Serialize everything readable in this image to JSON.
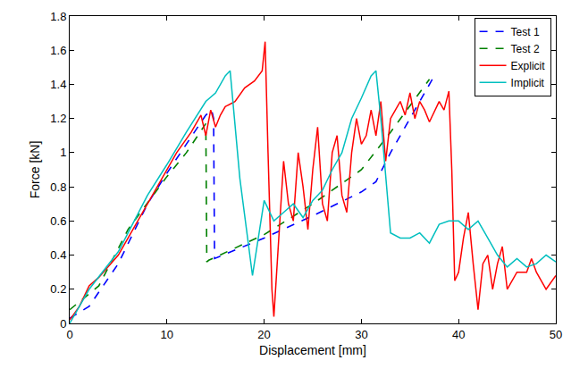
{
  "chart_data": {
    "type": "line",
    "x_label": "Displacement [mm]",
    "y_label": "Force [kN]",
    "xlim": [
      0,
      50
    ],
    "xticks": [
      0,
      10,
      20,
      30,
      40,
      50
    ],
    "ylim": [
      0,
      1.8
    ],
    "yticks": [
      0,
      0.2,
      0.4,
      0.6,
      0.8,
      1,
      1.2,
      1.4,
      1.6,
      1.8
    ],
    "grid": false,
    "legend": "top right",
    "series": [
      {
        "name": "Test 1",
        "color": "#0000ff",
        "line_style": "dash",
        "x": [
          0,
          2,
          5,
          8,
          10,
          12,
          14,
          14.6,
          14.8,
          14.9,
          20,
          25,
          30,
          31.5,
          33,
          36,
          37.5
        ],
        "values": [
          0.03,
          0.1,
          0.35,
          0.7,
          0.88,
          1.05,
          1.22,
          1.25,
          1.2,
          0.38,
          0.5,
          0.63,
          0.77,
          0.83,
          1.0,
          1.3,
          1.45
        ]
      },
      {
        "name": "Test 2",
        "color": "#008000",
        "line_style": "dash",
        "x": [
          0,
          3,
          6,
          10,
          12,
          14,
          14.1,
          14.3,
          20,
          25,
          30,
          33,
          37
        ],
        "values": [
          0.08,
          0.22,
          0.55,
          0.86,
          1.0,
          1.17,
          0.36,
          0.37,
          0.52,
          0.7,
          0.9,
          1.12,
          1.43
        ]
      },
      {
        "name": "Explicit",
        "color": "#ff0000",
        "line_style": "solid",
        "x": [
          0,
          1,
          2,
          3,
          5,
          7,
          9,
          11,
          12.5,
          13.5,
          14,
          14.5,
          15,
          15.5,
          16,
          17,
          18,
          19,
          19.8,
          20.1,
          20.4,
          20.8,
          21,
          21.5,
          22,
          22.5,
          23,
          23.5,
          24,
          24.5,
          25,
          25.5,
          26,
          26.5,
          27,
          27.5,
          28,
          28.5,
          29,
          29.5,
          30,
          30.5,
          31,
          31.5,
          32,
          32.5,
          33,
          33.5,
          34,
          34.5,
          35,
          35.5,
          36,
          36.5,
          37,
          38,
          38.5,
          39,
          39.3,
          39.6,
          40,
          40.5,
          41,
          41.5,
          42,
          42.5,
          43,
          43.5,
          44,
          44.5,
          45,
          46,
          47,
          47.5,
          48,
          49,
          50
        ],
        "values": [
          0.02,
          0.1,
          0.22,
          0.27,
          0.4,
          0.6,
          0.8,
          1.0,
          1.12,
          1.22,
          1.1,
          1.25,
          1.15,
          1.22,
          1.27,
          1.3,
          1.38,
          1.42,
          1.48,
          1.65,
          1.0,
          0.2,
          0.04,
          0.5,
          0.95,
          0.7,
          0.6,
          1.0,
          0.8,
          0.55,
          0.9,
          1.15,
          0.7,
          0.6,
          1.0,
          1.1,
          0.75,
          0.65,
          1.0,
          1.2,
          1.05,
          1.1,
          1.25,
          1.1,
          1.3,
          0.95,
          1.2,
          1.25,
          1.3,
          1.22,
          1.35,
          1.2,
          1.3,
          1.25,
          1.18,
          1.3,
          1.25,
          1.36,
          0.9,
          0.25,
          0.3,
          0.5,
          0.65,
          0.35,
          0.08,
          0.35,
          0.4,
          0.2,
          0.35,
          0.45,
          0.2,
          0.3,
          0.3,
          0.38,
          0.3,
          0.2,
          0.28
        ]
      },
      {
        "name": "Implicit",
        "color": "#00bfbf",
        "line_style": "solid",
        "x": [
          0,
          2,
          5,
          8,
          10,
          12,
          14,
          15,
          16,
          16.5,
          17.5,
          18.8,
          20,
          21,
          22,
          23,
          24,
          25,
          26,
          27,
          28,
          29,
          30,
          31,
          31.5,
          32,
          33,
          34,
          35,
          36,
          37,
          38,
          39,
          40,
          41,
          42,
          43,
          44,
          45,
          46,
          47,
          48,
          49,
          50
        ],
        "values": [
          0,
          0.2,
          0.42,
          0.75,
          0.93,
          1.12,
          1.3,
          1.35,
          1.45,
          1.48,
          0.85,
          0.28,
          0.72,
          0.6,
          0.65,
          0.7,
          0.62,
          0.72,
          0.78,
          0.9,
          1.0,
          1.2,
          1.32,
          1.45,
          1.48,
          1.2,
          0.53,
          0.5,
          0.5,
          0.53,
          0.47,
          0.58,
          0.6,
          0.6,
          0.55,
          0.6,
          0.5,
          0.4,
          0.33,
          0.38,
          0.33,
          0.35,
          0.4,
          0.36
        ]
      }
    ]
  }
}
